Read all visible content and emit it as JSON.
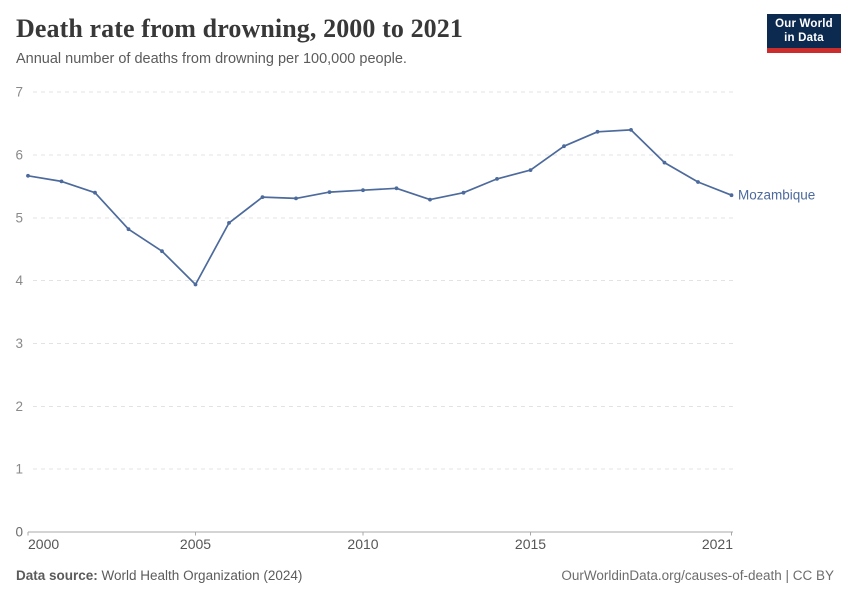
{
  "header": {
    "title": "Death rate from drowning, 2000 to 2021",
    "subtitle": "Annual number of deaths from drowning per 100,000 people.",
    "logo_line1": "Our World",
    "logo_line2": "in Data"
  },
  "chart_data": {
    "type": "line",
    "title": "Death rate from drowning, 2000 to 2021",
    "subtitle": "Annual number of deaths from drowning per 100,000 people.",
    "xlabel": "",
    "ylabel": "",
    "x": [
      2000,
      2001,
      2002,
      2003,
      2004,
      2005,
      2006,
      2007,
      2008,
      2009,
      2010,
      2011,
      2012,
      2013,
      2014,
      2015,
      2016,
      2017,
      2018,
      2019,
      2020,
      2021
    ],
    "series": [
      {
        "name": "Mozambique",
        "color": "#4c6a9c",
        "values": [
          5.67,
          5.58,
          5.4,
          4.82,
          4.47,
          3.94,
          4.92,
          5.33,
          5.31,
          5.41,
          5.44,
          5.47,
          5.29,
          5.4,
          5.62,
          5.76,
          6.14,
          6.37,
          6.4,
          5.88,
          5.57,
          5.36
        ]
      }
    ],
    "xlim": [
      2000,
      2021
    ],
    "ylim": [
      0,
      7
    ],
    "xticks": [
      2000,
      2005,
      2010,
      2015,
      2021
    ],
    "yticks": [
      0,
      1,
      2,
      3,
      4,
      5,
      6,
      7
    ],
    "grid": "horizontal-dashed",
    "legend": "entity-label-at-line-end"
  },
  "colors": {
    "line": "#4c6a9c",
    "grid": "#e3e3e3",
    "axis": "#a8a8a8",
    "y_tick_label": "#8a8a8a",
    "x_tick_label": "#565656"
  },
  "footer": {
    "source_label": "Data source:",
    "source_value": " World Health Organization (2024)",
    "credit": "OurWorldinData.org/causes-of-death | CC BY"
  }
}
